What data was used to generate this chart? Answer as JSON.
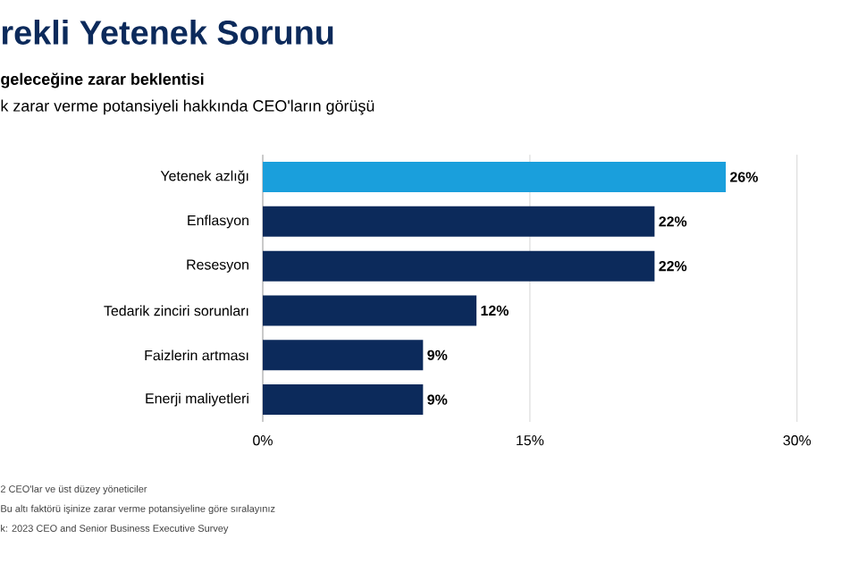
{
  "chart_data": {
    "type": "bar",
    "orientation": "horizontal",
    "title": "rekli Yetenek Sorunu",
    "subtitle": "geleceğine zarar beklentisi",
    "annotations": [
      "k zarar verme potansiyeli hakkında CEO'ların görüşü",
      "2 CEO'lar ve üst düzey yöneticiler",
      "Bu altı faktörü işinize zarar verme potansiyeline göre sıralayınız",
      "k: 2023 CEO and Senior Business Executive Survey"
    ],
    "categories": [
      "Yetenek azlığı",
      "Enflasyon",
      "Resesyon",
      "Tedarik zinciri sorunları",
      "Faizlerin artması",
      "Enerji maliyetleri"
    ],
    "values": [
      26,
      22,
      22,
      12,
      9,
      9
    ],
    "value_labels": [
      "26%",
      "22%",
      "22%",
      "12%",
      "9%",
      "9%"
    ],
    "colors": [
      "#1a9fdc",
      "#0c2a5b",
      "#0c2a5b",
      "#0c2a5b",
      "#0c2a5b",
      "#0c2a5b"
    ],
    "xlim": [
      0,
      30
    ],
    "xticks": [
      {
        "value": 0,
        "label": "0%"
      },
      {
        "value": 15,
        "label": "15%"
      },
      {
        "value": 30,
        "label": "30%"
      }
    ],
    "grid": "x"
  }
}
